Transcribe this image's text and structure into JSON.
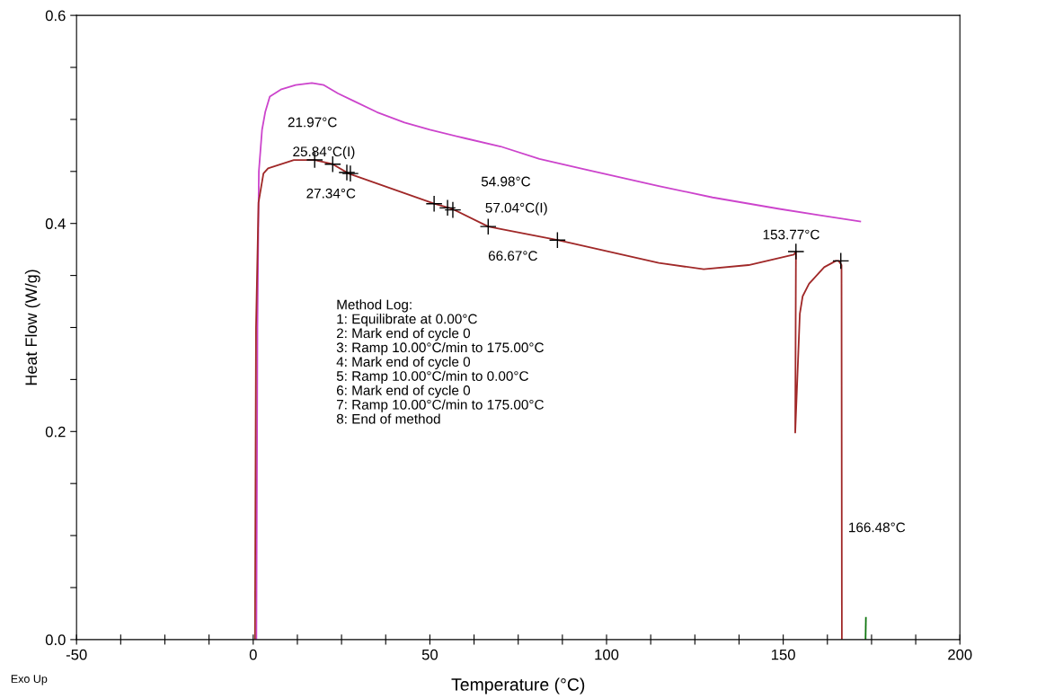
{
  "chart_data": {
    "type": "line",
    "xlabel": "Temperature (°C)",
    "ylabel": "Heat Flow (W/g)",
    "xlim": [
      -50,
      200
    ],
    "ylim": [
      0,
      0.6
    ],
    "xticks": [
      -50,
      {
        "value": -37.5,
        "label": null
      },
      {
        "value": -25,
        "label": null
      },
      {
        "value": -12.5,
        "label": null
      },
      0,
      {
        "value": 12.5,
        "label": null
      },
      {
        "value": 25,
        "label": null
      },
      {
        "value": 37.5,
        "label": null
      },
      50,
      {
        "value": 62.5,
        "label": null
      },
      {
        "value": 75,
        "label": null
      },
      {
        "value": 87.5,
        "label": null
      },
      100,
      {
        "value": 112.5,
        "label": null
      },
      {
        "value": 125,
        "label": null
      },
      {
        "value": 137.5,
        "label": null
      },
      150,
      {
        "value": 162.5,
        "label": null
      },
      {
        "value": 175,
        "label": null
      },
      {
        "value": 187.5,
        "label": null
      },
      200
    ],
    "yticks": [
      {
        "value": 0,
        "label": "0.0"
      },
      {
        "value": 0.05,
        "label": null
      },
      {
        "value": 0.1,
        "label": null
      },
      {
        "value": 0.15,
        "label": null
      },
      {
        "value": 0.2,
        "label": "0.2"
      },
      {
        "value": 0.25,
        "label": null
      },
      {
        "value": 0.3,
        "label": null
      },
      {
        "value": 0.35,
        "label": null
      },
      {
        "value": 0.4,
        "label": "0.4"
      },
      {
        "value": 0.45,
        "label": null
      },
      {
        "value": 0.5,
        "label": null
      },
      {
        "value": 0.55,
        "label": null
      },
      {
        "value": 0.6,
        "label": "0.6"
      }
    ],
    "grid": false,
    "legend": false,
    "series": [
      {
        "marker": "none",
        "color": "#cc44cc",
        "x": [
          0.9,
          1.0,
          1.2,
          1.6,
          2.5,
          3.4,
          4.7,
          8,
          12,
          16.6,
          20,
          24,
          28.3,
          35,
          42.8,
          50,
          59.8,
          70,
          81,
          93.7,
          114.8,
          130,
          148.9,
          160,
          171.8
        ],
        "values": [
          0,
          0.1,
          0.3,
          0.45,
          0.49,
          0.507,
          0.522,
          0.529,
          0.533,
          0.535,
          0.533,
          0.525,
          0.518,
          0.507,
          0.497,
          0.49,
          0.482,
          0.474,
          0.462,
          0.452,
          0.436,
          0.425,
          0.414,
          0.408,
          0.402
        ]
      },
      {
        "marker": "none",
        "color": "#a02828",
        "x": [
          0.5,
          0.8,
          1.5,
          2.9,
          4.2,
          11.5,
          17.4,
          22.5,
          27,
          51.2,
          56.3,
          66.5,
          86.1,
          114.8,
          127.5,
          140.2,
          153,
          153.6,
          153.4,
          154.2,
          154.7,
          155.5,
          157.3,
          161.6,
          164.9,
          165.7,
          166.5,
          166.6
        ],
        "values": [
          0,
          0.3,
          0.42,
          0.448,
          0.453,
          0.461,
          0.461,
          0.457,
          0.448,
          0.419,
          0.414,
          0.397,
          0.384,
          0.362,
          0.356,
          0.36,
          0.37,
          0.373,
          0.199,
          0.269,
          0.313,
          0.33,
          0.342,
          0.358,
          0.364,
          0.364,
          0.36,
          0
        ]
      },
      {
        "marker": "none",
        "color": "#117711",
        "x": [
          173.3,
          173.4
        ],
        "values": [
          0,
          0.021
        ]
      },
      {
        "type": "scatter",
        "marker": "cross",
        "color": "#000000",
        "x": [
          17.4,
          22.5,
          26.5,
          27.5,
          51.2,
          55,
          56.5,
          66.5,
          86.1,
          153.6,
          166.3
        ],
        "values": [
          0.461,
          0.457,
          0.449,
          0.448,
          0.419,
          0.415,
          0.413,
          0.397,
          0.384,
          0.373,
          0.364
        ]
      }
    ],
    "annotations": [
      "Method Log:\n1: Equilibrate at 0.00°C\n2: Mark end of cycle 0\n3: Ramp 10.00°C/min to 175.00°C\n4: Mark end of cycle 0\n5: Ramp 10.00°C/min to 0.00°C\n6: Mark end of cycle 0\n7: Ramp 10.00°C/min to 175.00°C\n8: End of method",
      "Exo Up",
      "21.97°C",
      "25.84°C(I)",
      "27.34°C",
      "54.98°C",
      "57.04°C(I)",
      "66.67°C",
      "153.77°C",
      "166.48°C"
    ]
  }
}
